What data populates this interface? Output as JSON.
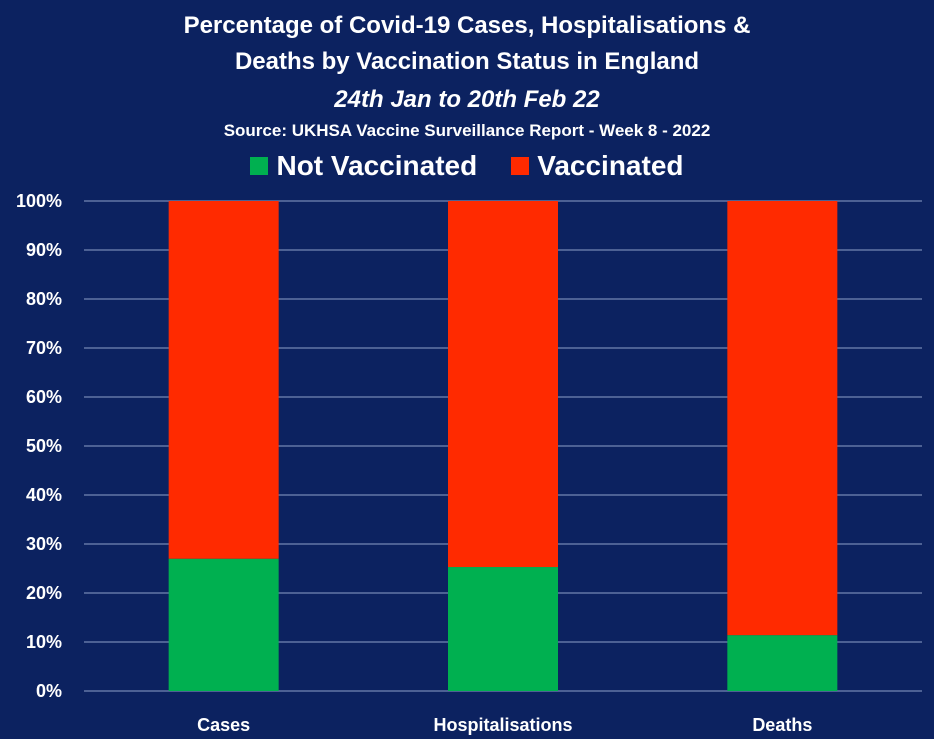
{
  "colors": {
    "background": "#0c2260",
    "not_vaccinated": "#00b050",
    "vaccinated": "#ff2a00",
    "grid": "#8ea0c8"
  },
  "chart_data": {
    "type": "bar",
    "stacked": true,
    "percent": true,
    "title_lines": [
      "Percentage of Covid-19 Cases, Hospitalisations &",
      "Deaths by Vaccination Status in England"
    ],
    "subtitle": "24th Jan to 20th Feb 22",
    "source": "Source: UKHSA Vaccine Surveillance Report - Week 8 - 2022",
    "categories": [
      "Cases",
      "Hospitalisations",
      "Deaths"
    ],
    "series": [
      {
        "name": "Not Vaccinated",
        "color": "#00b050",
        "values": [
          27,
          25.3,
          11.4
        ]
      },
      {
        "name": "Vaccinated",
        "color": "#ff2a00",
        "values": [
          73,
          74.7,
          88.6
        ]
      }
    ],
    "ylim": [
      0,
      100
    ],
    "yticks": [
      "0%",
      "10%",
      "20%",
      "30%",
      "40%",
      "50%",
      "60%",
      "70%",
      "80%",
      "90%",
      "100%"
    ],
    "grid": true,
    "legend_position": "top"
  }
}
